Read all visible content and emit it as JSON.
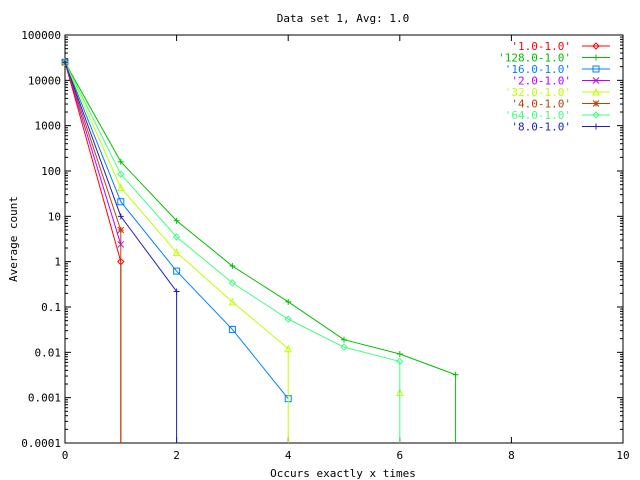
{
  "chart_data": {
    "type": "line",
    "title": "Data set 1, Avg: 1.0",
    "xlabel": "Occurs exactly x times",
    "ylabel": "Average count",
    "xlim": [
      0,
      10
    ],
    "ylim": [
      0.0001,
      100000
    ],
    "yscale": "log",
    "grid": false,
    "legend_position": "top-right",
    "x_ticks": [
      "0",
      "2",
      "4",
      "6",
      "8",
      "10"
    ],
    "y_ticks": [
      "100000",
      "10000",
      "1000",
      "100",
      "10",
      "1",
      "0.1",
      "0.01",
      "0.001",
      "0.0001"
    ],
    "series": [
      {
        "name": "'1.0-1.0'",
        "color": "#ff0000",
        "marker": "diamond",
        "x": [
          0,
          1
        ],
        "y": [
          25000,
          1
        ],
        "drop_to_axis": true
      },
      {
        "name": "'128.0-1.0'",
        "color": "#00c000",
        "marker": "plus",
        "x": [
          0,
          1,
          2,
          3,
          4,
          5,
          6,
          7
        ],
        "y": [
          25000,
          160,
          8,
          0.8,
          0.13,
          0.019,
          0.0092,
          0.0032
        ],
        "drop_to_axis": true
      },
      {
        "name": "'16.0-1.0'",
        "color": "#0080ff",
        "marker": "square",
        "x": [
          0,
          1,
          2,
          3,
          4
        ],
        "y": [
          25000,
          21,
          0.62,
          0.032,
          0.00095
        ],
        "drop_to_axis": false
      },
      {
        "name": "'2.0-1.0'",
        "color": "#c000ff",
        "marker": "cross",
        "x": [
          0,
          1
        ],
        "y": [
          25000,
          2.4
        ],
        "drop_to_axis": false
      },
      {
        "name": "'32.0-1.0'",
        "color": "#c0ff00",
        "marker": "triangle",
        "x": [
          0,
          1,
          2,
          3,
          4
        ],
        "y": [
          25000,
          43,
          1.6,
          0.13,
          0.012
        ],
        "drop_to_axis": true,
        "isolated_points": [
          [
            6,
            0.0013
          ]
        ]
      },
      {
        "name": "'4.0-1.0'",
        "color": "#c04000",
        "marker": "star",
        "x": [
          0,
          1
        ],
        "y": [
          25000,
          5
        ],
        "drop_to_axis": true
      },
      {
        "name": "'64.0-1.0'",
        "color": "#40ff80",
        "marker": "diamond",
        "x": [
          0,
          1,
          2,
          3,
          4,
          5,
          6
        ],
        "y": [
          25000,
          85,
          3.5,
          0.34,
          0.054,
          0.013,
          0.0063
        ],
        "drop_to_axis": true
      },
      {
        "name": "'8.0-1.0'",
        "color": "#2020c0",
        "marker": "plus",
        "x": [
          0,
          1,
          2
        ],
        "y": [
          25000,
          10,
          0.22
        ],
        "drop_to_axis": true
      }
    ]
  }
}
